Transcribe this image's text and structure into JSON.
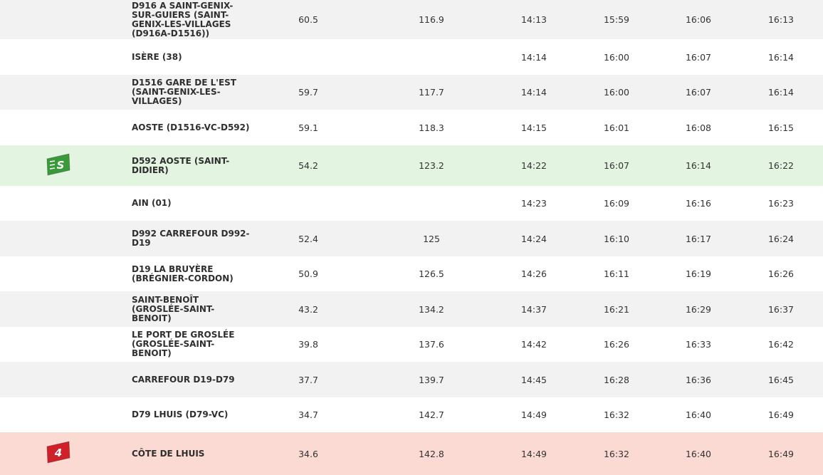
{
  "rows": [
    {
      "kind": "grey",
      "location": "D916 A SAINT-GENIX-SUR-GUIERS (SAINT-GENIX-LES-VILLAGES (D916A-D1516))",
      "km_done": "60.5",
      "km_total": "116.9",
      "t1": "14:13",
      "t2": "15:59",
      "t3": "16:06",
      "t4": "16:13"
    },
    {
      "kind": "white",
      "location": "ISÈRE (38)",
      "km_done": "",
      "km_total": "",
      "t1": "14:14",
      "t2": "16:00",
      "t3": "16:07",
      "t4": "16:14"
    },
    {
      "kind": "grey",
      "location": "D1516 GARE DE L'EST (SAINT-GENIX-LES-VILLAGES)",
      "km_done": "59.7",
      "km_total": "117.7",
      "t1": "14:14",
      "t2": "16:00",
      "t3": "16:07",
      "t4": "16:14"
    },
    {
      "kind": "white",
      "location": "AOSTE (D1516-VC-D592)",
      "km_done": "59.1",
      "km_total": "118.3",
      "t1": "14:15",
      "t2": "16:01",
      "t3": "16:08",
      "t4": "16:15"
    },
    {
      "kind": "sprint",
      "icon": "sprint-icon",
      "icon_text": "S",
      "icon_color": "#3a9a3a",
      "location": "D592 AOSTE (SAINT-DIDIER)",
      "km_done": "54.2",
      "km_total": "123.2",
      "t1": "14:22",
      "t2": "16:07",
      "t3": "16:14",
      "t4": "16:22"
    },
    {
      "kind": "white",
      "location": "AIN (01)",
      "km_done": "",
      "km_total": "",
      "t1": "14:23",
      "t2": "16:09",
      "t3": "16:16",
      "t4": "16:23"
    },
    {
      "kind": "grey",
      "location": "D992 CARREFOUR D992-D19",
      "km_done": "52.4",
      "km_total": "125",
      "t1": "14:24",
      "t2": "16:10",
      "t3": "16:17",
      "t4": "16:24"
    },
    {
      "kind": "white",
      "location": "D19 LA BRUYÈRE (BRÉGNIER-CORDON)",
      "km_done": "50.9",
      "km_total": "126.5",
      "t1": "14:26",
      "t2": "16:11",
      "t3": "16:19",
      "t4": "16:26"
    },
    {
      "kind": "grey",
      "location": "SAINT-BENOÎT (GROSLÉE-SAINT-BENOIT)",
      "km_done": "43.2",
      "km_total": "134.2",
      "t1": "14:37",
      "t2": "16:21",
      "t3": "16:29",
      "t4": "16:37"
    },
    {
      "kind": "white",
      "location": "LE PORT DE GROSLÉE (GROSLÉE-SAINT-BENOIT)",
      "km_done": "39.8",
      "km_total": "137.6",
      "t1": "14:42",
      "t2": "16:26",
      "t3": "16:33",
      "t4": "16:42"
    },
    {
      "kind": "grey",
      "location": "CARREFOUR D19-D79",
      "km_done": "37.7",
      "km_total": "139.7",
      "t1": "14:45",
      "t2": "16:28",
      "t3": "16:36",
      "t4": "16:45"
    },
    {
      "kind": "white",
      "location": "D79 LHUIS (D79-VC)",
      "km_done": "34.7",
      "km_total": "142.7",
      "t1": "14:49",
      "t2": "16:32",
      "t3": "16:40",
      "t4": "16:49"
    },
    {
      "kind": "climb",
      "icon": "climb-category-4-icon",
      "icon_text": "4",
      "icon_color": "#d0202a",
      "location": "CÔTE DE LHUIS",
      "km_done": "34.6",
      "km_total": "142.8",
      "t1": "14:49",
      "t2": "16:32",
      "t3": "16:40",
      "t4": "16:49"
    }
  ]
}
